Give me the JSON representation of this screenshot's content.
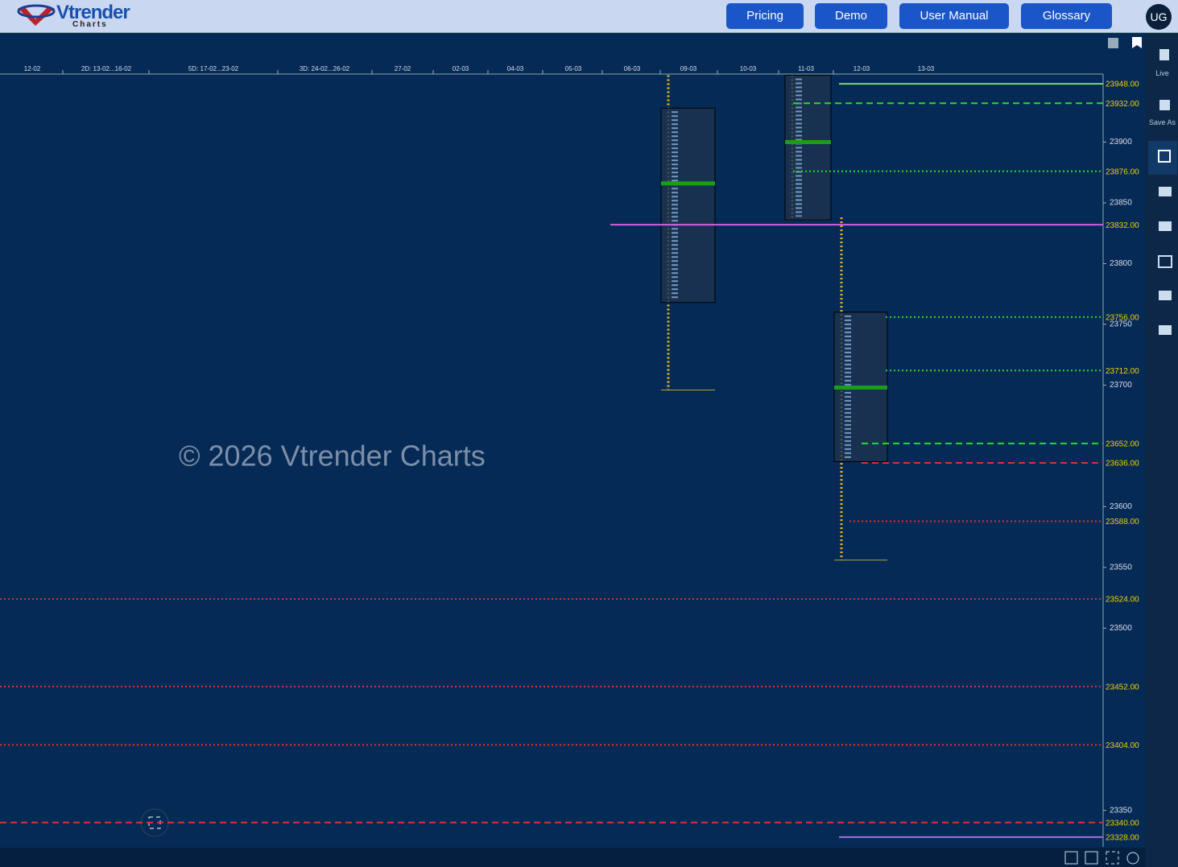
{
  "header": {
    "logo": "Vtrender",
    "logo_sub": "Charts",
    "buttons": [
      "Pricing",
      "Demo",
      "User Manual",
      "Glossary"
    ],
    "user": "UG"
  },
  "sidebar": {
    "live": "Live",
    "save_as": "Save As"
  },
  "chart_data": {
    "type": "market-profile",
    "watermark": "© 2026 Vtrender Charts",
    "categories": [
      "12-02",
      "2D: 13-02...16-02",
      "5D: 17-02...23-02",
      "3D: 24-02...26-02",
      "27-02",
      "02-03",
      "04-03",
      "05-03",
      "06-03",
      "09-03",
      "10-03",
      "11-03",
      "12-03",
      "13-03"
    ],
    "ylim": [
      23320,
      23956
    ],
    "yticks": [
      23350,
      23500,
      23550,
      23600,
      23700,
      23750,
      23800,
      23850,
      23900
    ],
    "profiles": [
      {
        "high": 23955,
        "low": 23696,
        "vah": 23928,
        "val": 23768,
        "poc": 23866,
        "color": "#1a9e1a"
      },
      {
        "high": 23955,
        "low": 23836,
        "vah": 23955,
        "val": 23836,
        "poc": 23900,
        "color": "#1a9e1a"
      },
      {
        "high": 23838,
        "low": 23556,
        "vah": 23760,
        "val": 23637,
        "poc": 23698,
        "color": "#1a9e1a"
      }
    ],
    "levels": [
      {
        "value": 23948,
        "value_label": "23948.00",
        "color": "#7fd07f",
        "style": "solid"
      },
      {
        "value": 23932,
        "value_label": "23932.00",
        "color": "#22dd22",
        "style": "dashed"
      },
      {
        "value": 23876,
        "value_label": "23876.00",
        "color": "#22dd22",
        "style": "dotted"
      },
      {
        "value": 23832,
        "value_label": "23832.00",
        "color": "#d060e0",
        "style": "solid"
      },
      {
        "value": 23756,
        "value_label": "23756.00",
        "color": "#22dd22",
        "style": "dotted"
      },
      {
        "value": 23712,
        "value_label": "23712.00",
        "color": "#22dd22",
        "style": "dotted"
      },
      {
        "value": 23652,
        "value_label": "23652.00",
        "color": "#22dd22",
        "style": "dashed"
      },
      {
        "value": 23636,
        "value_label": "23636.00",
        "color": "#e03030",
        "style": "dashed"
      },
      {
        "value": 23588,
        "value_label": "23588.00",
        "color": "#e03030",
        "style": "dotted"
      },
      {
        "value": 23524,
        "value_label": "23524.00",
        "color": "#e03030",
        "style": "dotted"
      },
      {
        "value": 23452,
        "value_label": "23452.00",
        "color": "#e03030",
        "style": "dotted"
      },
      {
        "value": 23404,
        "value_label": "23404.00",
        "color": "#e03030",
        "style": "dotted"
      },
      {
        "value": 23340,
        "value_label": "23340.00",
        "color": "#e03030",
        "style": "dashed"
      },
      {
        "value": 23328,
        "value_label": "23328.00",
        "color": "#a070e0",
        "style": "solid"
      }
    ]
  }
}
